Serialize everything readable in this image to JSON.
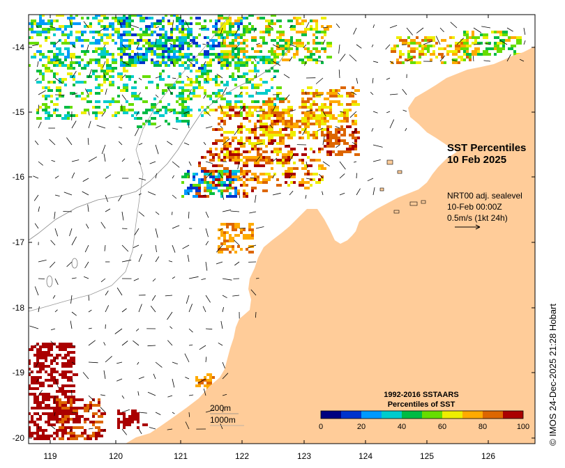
{
  "map": {
    "title_line1": "SST Percentiles",
    "title_line2": "10 Feb 2025",
    "current_note": {
      "line1": "NRT00 adj. sealevel",
      "line2": "10-Feb 00:00Z",
      "line3": "0.5m/s (1kt 24h)"
    },
    "bathymetry_labels": [
      "200m",
      "1000m"
    ],
    "credit": "© IMOS 24-Dec-2025 21:28 Hobart",
    "lon_ticks": [
      "119",
      "120",
      "121",
      "122",
      "123",
      "124",
      "125",
      "126"
    ],
    "lat_ticks": [
      "-14",
      "-15",
      "-16",
      "-17",
      "-18",
      "-19",
      "-20"
    ],
    "land_color": "#ffcc99",
    "legend": {
      "title_line1": "1992-2016 SSTAARS",
      "title_line2": "Percentiles of SST",
      "tick_labels": [
        "0",
        "20",
        "40",
        "60",
        "80",
        "100"
      ],
      "colors": [
        "#000080",
        "#0033cc",
        "#0099ff",
        "#00cccc",
        "#00bb44",
        "#66dd00",
        "#eeee00",
        "#ffaa00",
        "#dd6600",
        "#aa0000"
      ]
    }
  }
}
